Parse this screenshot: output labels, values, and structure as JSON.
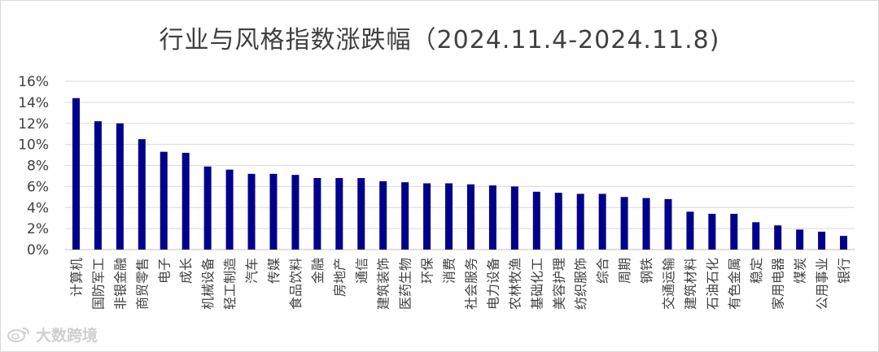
{
  "chart_data": {
    "type": "bar",
    "title": "行业与风格指数涨跌幅（2024.11.4-2024.11.8)",
    "categories": [
      "计算机",
      "国防军工",
      "非银金融",
      "商贸零售",
      "电子",
      "成长",
      "机械设备",
      "轻工制造",
      "汽车",
      "传媒",
      "食品饮料",
      "金融",
      "房地产",
      "通信",
      "建筑装饰",
      "医药生物",
      "环保",
      "消费",
      "社会服务",
      "电力设备",
      "农林牧渔",
      "基础化工",
      "美容护理",
      "纺织服饰",
      "综合",
      "周期",
      "钢铁",
      "交通运输",
      "建筑材料",
      "石油石化",
      "有色金属",
      "稳定",
      "家用电器",
      "煤炭",
      "公用事业",
      "银行"
    ],
    "values": [
      14.4,
      12.2,
      12.0,
      10.5,
      9.3,
      9.2,
      7.9,
      7.6,
      7.2,
      7.2,
      7.1,
      6.8,
      6.8,
      6.8,
      6.5,
      6.4,
      6.3,
      6.3,
      6.2,
      6.1,
      6.0,
      5.5,
      5.4,
      5.3,
      5.3,
      5.0,
      4.9,
      4.8,
      3.6,
      3.4,
      3.4,
      2.6,
      2.3,
      1.9,
      1.7,
      1.3
    ],
    "ylim": [
      0,
      16
    ],
    "yticks": [
      "0%",
      "2%",
      "4%",
      "6%",
      "8%",
      "10%",
      "12%",
      "14%",
      "16%"
    ],
    "y_format": "percent",
    "grid": true,
    "bar_color": "#00008B"
  },
  "watermark": {
    "text": "大数跨境"
  }
}
